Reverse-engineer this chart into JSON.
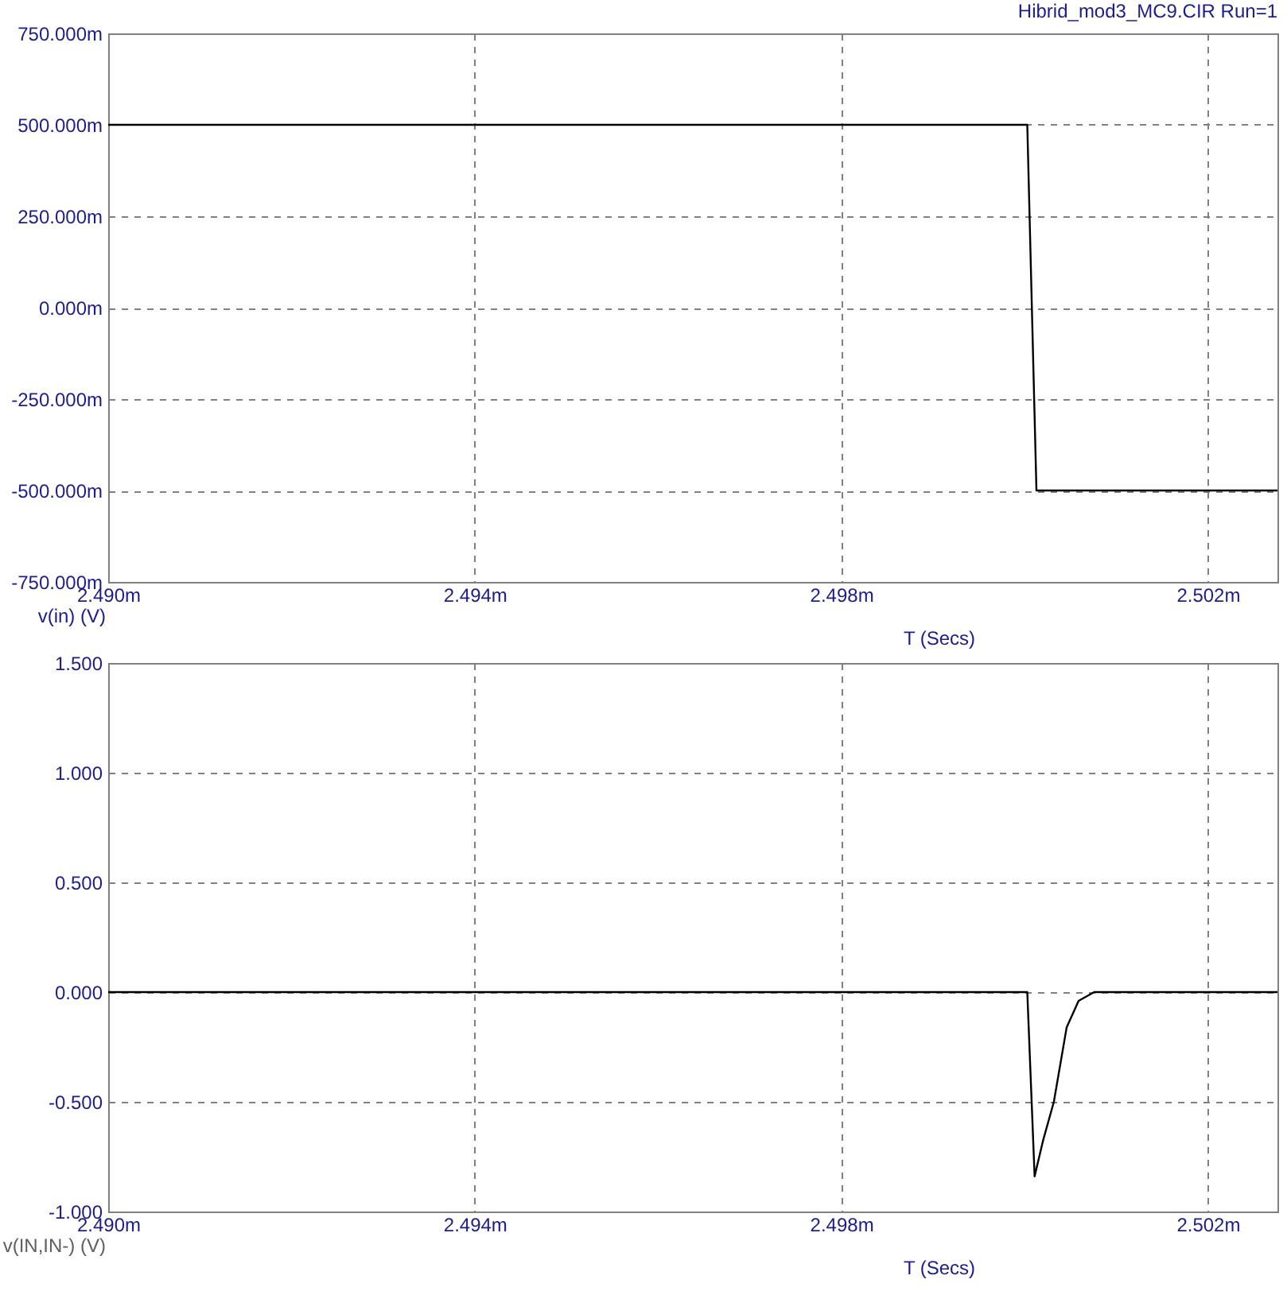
{
  "chart_data": [
    {
      "type": "line",
      "title": "Hibrid_mod3_MC9.CIR Run=1",
      "xlabel": "T (Secs)",
      "ylabel": "v(in) (V)",
      "color": "#000000",
      "x": [
        2.49,
        2.50003,
        2.50013,
        2.50276
      ],
      "values": [
        500,
        500,
        -500,
        -500
      ],
      "xlim": [
        2.49,
        2.50276
      ],
      "xticks": [
        {
          "value": 2.49,
          "label": "2.490m"
        },
        {
          "value": 2.494,
          "label": "2.494m"
        },
        {
          "value": 2.498,
          "label": "2.498m"
        },
        {
          "value": 2.502,
          "label": "2.502m"
        }
      ],
      "ylim": [
        -750,
        750
      ],
      "yticks": [
        {
          "value": -750,
          "label": "-750.000m"
        },
        {
          "value": -500,
          "label": "-500.000m"
        },
        {
          "value": -250,
          "label": "-250.000m"
        },
        {
          "value": 0,
          "label": "0.000m"
        },
        {
          "value": 250,
          "label": "250.000m"
        },
        {
          "value": 500,
          "label": "500.000m"
        },
        {
          "value": 750,
          "label": "750.000m"
        }
      ],
      "grid": true,
      "line_style": "solid"
    },
    {
      "type": "line",
      "xlabel": "T (Secs)",
      "ylabel": "v(IN,IN-) (V)",
      "color": "#000000",
      "x": [
        2.49,
        2.50003,
        2.50011,
        2.5002,
        2.50032,
        2.50046,
        2.50059,
        2.50076,
        2.50276
      ],
      "values": [
        0,
        0,
        -0.84,
        -0.68,
        -0.5,
        -0.16,
        -0.04,
        0,
        0
      ],
      "xlim": [
        2.49,
        2.50276
      ],
      "xticks": [
        {
          "value": 2.49,
          "label": "2.490m"
        },
        {
          "value": 2.494,
          "label": "2.494m"
        },
        {
          "value": 2.498,
          "label": "2.498m"
        },
        {
          "value": 2.502,
          "label": "2.502m"
        }
      ],
      "ylim": [
        -1,
        1.5
      ],
      "yticks": [
        {
          "value": -1,
          "label": "-1.000"
        },
        {
          "value": -0.5,
          "label": "-0.500"
        },
        {
          "value": 0,
          "label": "0.000"
        },
        {
          "value": 0.5,
          "label": "0.500"
        },
        {
          "value": 1,
          "label": "1.000"
        },
        {
          "value": 1.5,
          "label": "1.500"
        }
      ],
      "grid": true,
      "line_style": "solid"
    }
  ]
}
